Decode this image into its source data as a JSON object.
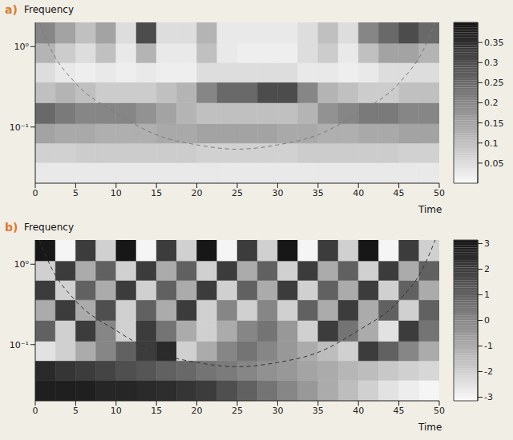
{
  "chart_data": [
    {
      "type": "heatmap",
      "panel_label": "a)",
      "y_label": "Frequency",
      "x_label": "Time",
      "xlim": [
        0,
        50
      ],
      "xticks": [
        0,
        5,
        10,
        15,
        20,
        25,
        30,
        35,
        40,
        45,
        50
      ],
      "ylim": [
        0.02,
        2
      ],
      "yticks": [
        {
          "value": 0.1,
          "label": "10⁻¹"
        },
        {
          "value": 1,
          "label": "10⁰"
        }
      ],
      "log": "y",
      "time_bins": [
        0,
        2.5,
        5,
        7.5,
        10,
        12.5,
        15,
        17.5,
        20,
        22.5,
        25,
        27.5,
        30,
        32.5,
        35,
        37.5,
        40,
        42.5,
        45,
        47.5,
        50
      ],
      "frequency_bins": [
        0.02,
        0.036,
        0.063,
        0.11,
        0.2,
        0.36,
        0.63,
        1.1,
        2
      ],
      "cells": [
        [
          0.03,
          0.03,
          0.03,
          0.03,
          0.03,
          0.03,
          0.03,
          0.03,
          0.03,
          0.03,
          0.03,
          0.03,
          0.03,
          0.03,
          0.03,
          0.03,
          0.03,
          0.03,
          0.03,
          0.03
        ],
        [
          0.07,
          0.07,
          0.08,
          0.08,
          0.08,
          0.08,
          0.08,
          0.08,
          0.07,
          0.07,
          0.07,
          0.07,
          0.07,
          0.08,
          0.08,
          0.08,
          0.08,
          0.08,
          0.07,
          0.07
        ],
        [
          0.15,
          0.14,
          0.14,
          0.13,
          0.13,
          0.13,
          0.14,
          0.14,
          0.15,
          0.15,
          0.15,
          0.15,
          0.14,
          0.14,
          0.13,
          0.13,
          0.14,
          0.14,
          0.15,
          0.15
        ],
        [
          0.25,
          0.22,
          0.2,
          0.2,
          0.2,
          0.18,
          0.15,
          0.12,
          0.1,
          0.1,
          0.1,
          0.1,
          0.1,
          0.12,
          0.18,
          0.2,
          0.22,
          0.22,
          0.2,
          0.2
        ],
        [
          0.1,
          0.12,
          0.1,
          0.08,
          0.08,
          0.08,
          0.1,
          0.12,
          0.2,
          0.25,
          0.25,
          0.3,
          0.3,
          0.2,
          0.12,
          0.1,
          0.08,
          0.08,
          0.1,
          0.1
        ],
        [
          0.05,
          0.03,
          0.02,
          0.03,
          0.02,
          0.03,
          0.02,
          0.02,
          0.05,
          0.05,
          0.05,
          0.05,
          0.05,
          0.03,
          0.03,
          0.02,
          0.03,
          0.05,
          0.05,
          0.05
        ],
        [
          0.12,
          0.08,
          0.05,
          0.1,
          0.03,
          0.12,
          0.03,
          0.03,
          0.1,
          0.03,
          0.02,
          0.02,
          0.02,
          0.05,
          0.08,
          0.03,
          0.1,
          0.15,
          0.15,
          0.12
        ],
        [
          0.2,
          0.15,
          0.1,
          0.15,
          0.05,
          0.3,
          0.05,
          0.05,
          0.12,
          0.03,
          0.03,
          0.03,
          0.03,
          0.05,
          0.1,
          0.05,
          0.2,
          0.25,
          0.3,
          0.25
        ]
      ],
      "colorbar": {
        "range": [
          0,
          0.4
        ],
        "ticks": [
          0.05,
          0.1,
          0.15,
          0.2,
          0.25,
          0.3,
          0.35
        ]
      },
      "cone_of_influence": {
        "x": [
          0.5,
          2,
          5,
          10,
          15,
          20,
          25,
          30,
          35,
          40,
          45,
          48,
          49.5
        ],
        "y": [
          2,
          0.9,
          0.35,
          0.15,
          0.08,
          0.06,
          0.053,
          0.06,
          0.08,
          0.15,
          0.35,
          0.9,
          2
        ],
        "color": "#7a7a7a",
        "line_style": "dashed"
      }
    },
    {
      "type": "heatmap",
      "panel_label": "b)",
      "y_label": "Frequency",
      "x_label": "Time",
      "xlim": [
        0,
        50
      ],
      "xticks": [
        0,
        5,
        10,
        15,
        20,
        25,
        30,
        35,
        40,
        45,
        50
      ],
      "ylim": [
        0.02,
        2
      ],
      "yticks": [
        {
          "value": 0.1,
          "label": "10⁻¹"
        },
        {
          "value": 1,
          "label": "10⁰"
        }
      ],
      "log": "y",
      "time_bins": [
        0,
        2.5,
        5,
        7.5,
        10,
        12.5,
        15,
        17.5,
        20,
        22.5,
        25,
        27.5,
        30,
        32.5,
        35,
        37.5,
        40,
        42.5,
        45,
        47.5,
        50
      ],
      "frequency_bins": [
        0.02,
        0.036,
        0.063,
        0.11,
        0.2,
        0.36,
        0.63,
        1.1,
        2
      ],
      "cells": [
        [
          2.8,
          2.8,
          2.8,
          2.6,
          2.6,
          2.5,
          2.4,
          2.2,
          2,
          1.5,
          1,
          0.5,
          0,
          -0.5,
          -1,
          -1.5,
          -2,
          -2.5,
          -2.8,
          -3
        ],
        [
          2.5,
          2.2,
          2,
          1.8,
          1.5,
          1.3,
          1,
          0.8,
          0.5,
          0.3,
          0,
          -0.3,
          -0.5,
          -0.8,
          -1,
          -1.3,
          -1.5,
          -1.8,
          -2,
          -2.2
        ],
        [
          -2.5,
          -2,
          -1,
          0,
          1,
          2,
          2.5,
          -2,
          -1,
          0,
          0.5,
          0,
          -0.5,
          -1,
          -1.5,
          -2,
          2,
          1,
          0,
          -1
        ],
        [
          1,
          -2,
          2,
          0,
          -2,
          2,
          0.5,
          -1,
          -2,
          -1,
          0,
          0.5,
          -0.5,
          -2,
          2,
          0.5,
          -1,
          -2.5,
          2,
          0.5
        ],
        [
          -1,
          2,
          -1,
          1.5,
          -2,
          1,
          -1,
          2,
          -2,
          0,
          -2,
          0,
          -2,
          1,
          -1,
          2,
          -1,
          1,
          -2,
          1
        ],
        [
          2,
          -2,
          1,
          -1,
          2,
          -2,
          1,
          -1,
          2,
          -2,
          1,
          -1,
          2,
          -2,
          1,
          -1,
          2,
          -2,
          1,
          -1
        ],
        [
          -2,
          2,
          -1,
          1,
          -2,
          2,
          -1,
          1,
          -2,
          2,
          -1,
          1,
          -2,
          2,
          -1,
          1,
          -2,
          2,
          -1,
          1
        ],
        [
          3,
          -3,
          2,
          -2,
          3,
          -3,
          2,
          -2,
          3,
          -3,
          2,
          -2,
          3,
          -3,
          2,
          -2,
          3,
          -3,
          2,
          -2
        ]
      ],
      "colorbar": {
        "range": [
          -3.14,
          3.14
        ],
        "ticks": [
          -3,
          -2,
          -1,
          0,
          1,
          2,
          3
        ]
      },
      "cone_of_influence": {
        "x": [
          0.5,
          2,
          5,
          10,
          15,
          20,
          25,
          30,
          35,
          40,
          45,
          48,
          49.5
        ],
        "y": [
          2,
          0.9,
          0.35,
          0.15,
          0.08,
          0.06,
          0.053,
          0.06,
          0.08,
          0.15,
          0.35,
          0.9,
          2
        ],
        "color": "#333333",
        "line_style": "dashed"
      }
    }
  ]
}
